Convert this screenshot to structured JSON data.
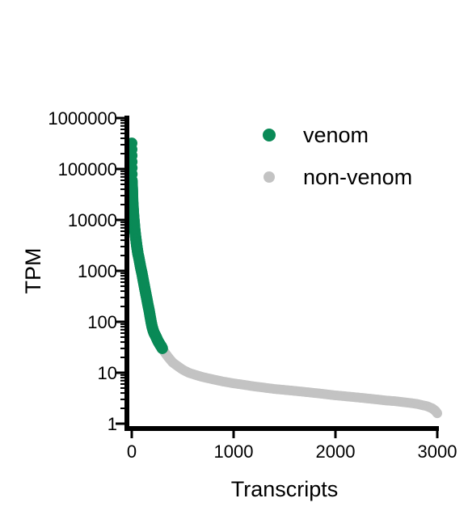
{
  "chart_data": {
    "type": "scatter",
    "xlabel": "Transcripts",
    "ylabel": "TPM",
    "xlim": [
      0,
      3000
    ],
    "ylim": [
      1,
      1000000
    ],
    "yscale": "log",
    "grid": false,
    "legend_position": "top-right",
    "x_ticks": [
      0,
      1000,
      2000,
      3000
    ],
    "x_tick_labels": [
      "0",
      "1000",
      "2000",
      "3000"
    ],
    "y_ticks": [
      1,
      10,
      100,
      1000,
      10000,
      100000,
      1000000
    ],
    "y_tick_labels": [
      "1",
      "10",
      "100",
      "1000",
      "10000",
      "100000",
      "1000000"
    ],
    "series": [
      {
        "name": "venom",
        "color": "#0a8a57",
        "x": [
          0,
          2,
          4,
          6,
          8,
          10,
          13,
          16,
          20,
          25,
          30,
          35,
          40,
          45,
          50,
          55,
          60,
          70,
          80,
          90,
          100,
          110,
          120,
          130,
          140,
          150,
          160,
          170,
          180,
          190,
          200,
          210,
          220,
          230,
          240,
          250,
          260,
          270,
          280,
          290,
          300
        ],
        "y": [
          320000,
          60000,
          50000,
          40000,
          30000,
          22000,
          18000,
          14000,
          11000,
          8500,
          6500,
          5200,
          4300,
          3600,
          3000,
          2600,
          2200,
          1800,
          1400,
          1100,
          900,
          700,
          550,
          430,
          340,
          270,
          210,
          170,
          130,
          100,
          80,
          68,
          60,
          55,
          50,
          45,
          41,
          38,
          35,
          33,
          30
        ]
      },
      {
        "name": "non-venom",
        "color": "#c3c3c3",
        "x": [
          300,
          330,
          360,
          400,
          450,
          500,
          560,
          630,
          700,
          800,
          900,
          1000,
          1100,
          1200,
          1300,
          1400,
          1500,
          1600,
          1700,
          1800,
          1900,
          2000,
          2100,
          2200,
          2300,
          2400,
          2500,
          2600,
          2700,
          2800,
          2900,
          2950,
          2980,
          3000
        ],
        "y": [
          30,
          24,
          20,
          16,
          13.5,
          11.5,
          10,
          9,
          8.2,
          7.4,
          6.7,
          6.2,
          5.8,
          5.4,
          5.1,
          4.8,
          4.6,
          4.4,
          4.2,
          4.0,
          3.8,
          3.6,
          3.45,
          3.3,
          3.15,
          3.0,
          2.85,
          2.75,
          2.6,
          2.45,
          2.2,
          2.0,
          1.8,
          1.6
        ]
      }
    ]
  }
}
